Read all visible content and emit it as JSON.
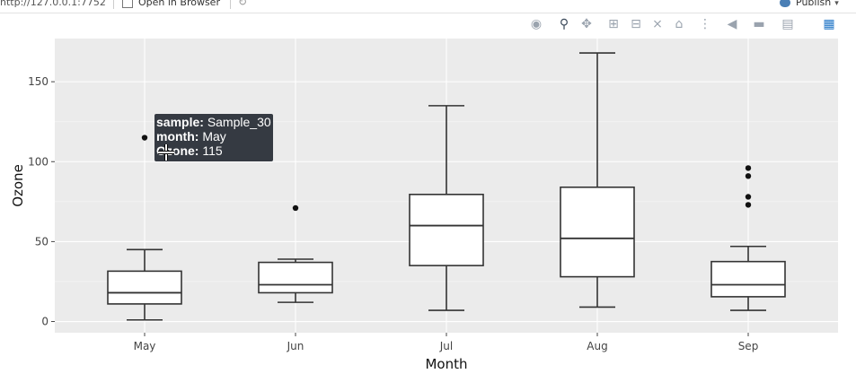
{
  "toolbar": {
    "url": "http://127.0.0.1:7752",
    "open_in_browser": "Open in Browser",
    "publish": "Publish"
  },
  "modebar": {
    "icons": [
      "camera-icon",
      "zoom-icon",
      "pan-icon",
      "zoom-in-icon",
      "zoom-out-icon",
      "autoscale-icon",
      "home-icon",
      "spike-lines-icon",
      "compare-hover-icon",
      "closest-hover-icon",
      "toggle-hover-icon",
      "plotly-logo-icon"
    ]
  },
  "chart_data": {
    "type": "box",
    "xlabel": "Month",
    "ylabel": "Ozone",
    "categories": [
      "May",
      "Jun",
      "Jul",
      "Aug",
      "Sep"
    ],
    "yticks": [
      0,
      50,
      100,
      150
    ],
    "ylim": [
      -7,
      177
    ],
    "grid": true,
    "background": "#ebebeb",
    "boxes": [
      {
        "category": "May",
        "min": 1,
        "q1": 11,
        "median": 18,
        "q3": 31.5,
        "max": 45,
        "outliers": [
          115
        ]
      },
      {
        "category": "Jun",
        "min": 12,
        "q1": 18,
        "median": 23,
        "q3": 37,
        "max": 39,
        "outliers": [
          71
        ]
      },
      {
        "category": "Jul",
        "min": 7,
        "q1": 35,
        "median": 60,
        "q3": 79.5,
        "max": 135,
        "outliers": []
      },
      {
        "category": "Aug",
        "min": 9,
        "q1": 28,
        "median": 52,
        "q3": 84,
        "max": 168,
        "outliers": []
      },
      {
        "category": "Sep",
        "min": 7,
        "q1": 15.5,
        "median": 23,
        "q3": 37.5,
        "max": 47,
        "outliers": [
          73,
          78,
          91,
          96
        ]
      }
    ],
    "hover": {
      "sample_label": "sample:",
      "sample_value": "Sample_30",
      "month_label": "month:",
      "month_value": "May",
      "ozone_label": "Ozone:",
      "ozone_value": "115"
    }
  }
}
